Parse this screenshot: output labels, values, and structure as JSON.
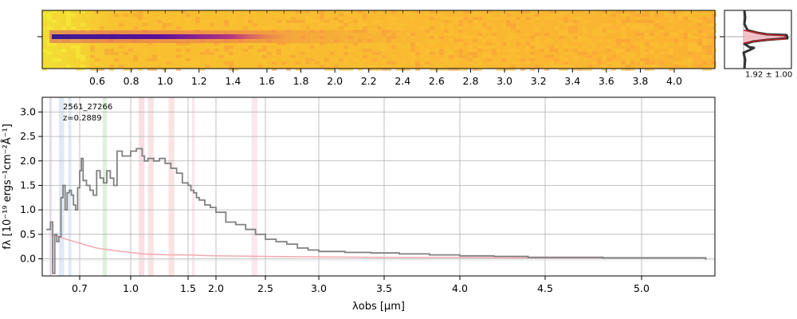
{
  "chart_data": [
    {
      "type": "heatmap",
      "panel": "2D spectrum",
      "colormap": "plasma",
      "top_axis_ticks": [
        "0.6",
        "0.8",
        "1.0",
        "1.2",
        "1.4",
        "1.6",
        "1.8",
        "2.0",
        "2.2",
        "2.4",
        "2.6",
        "2.8",
        "3.0",
        "3.2",
        "3.4",
        "3.6",
        "3.8",
        "4.0"
      ],
      "trace_wavelength_range": [
        0.45,
        1.9
      ]
    },
    {
      "type": "line",
      "panel": "spatial profile",
      "label": "1.92 ± 1.00",
      "colors": {
        "data": "#333333",
        "model": "#c0272d",
        "fill": "#f4b3bd"
      }
    },
    {
      "type": "line",
      "panel": "1D spectrum",
      "annotation": {
        "id": "2561_27266",
        "redshift": "z=0.2889"
      },
      "xlabel": "λobs [μm]",
      "ylabel": "fλ [10⁻¹⁹ ergs⁻¹cm⁻²Å⁻¹]",
      "x_scale": "nonlinear (prism)",
      "xlim": [
        0.52,
        5.4
      ],
      "ylim": [
        -0.35,
        3.3
      ],
      "x_ticks": [
        "0.7",
        "1.0",
        "1.5",
        "2.0",
        "2.5",
        "3.0",
        "3.5",
        "4.0",
        "4.5",
        "5.0"
      ],
      "y_ticks": [
        "0.0",
        "0.5",
        "1.0",
        "1.5",
        "2.0",
        "2.5",
        "3.0"
      ],
      "grid": true,
      "series": [
        {
          "color": "#808080",
          "x": [
            0.54,
            0.56,
            0.57,
            0.58,
            0.59,
            0.6,
            0.61,
            0.62,
            0.63,
            0.64,
            0.65,
            0.66,
            0.67,
            0.68,
            0.69,
            0.7,
            0.71,
            0.72,
            0.74,
            0.76,
            0.78,
            0.8,
            0.82,
            0.84,
            0.86,
            0.88,
            0.9,
            0.92,
            0.95,
            1.0,
            1.05,
            1.1,
            1.12,
            1.15,
            1.2,
            1.25,
            1.3,
            1.35,
            1.4,
            1.45,
            1.5,
            1.55,
            1.6,
            1.65,
            1.7,
            1.8,
            1.9,
            2.0,
            2.1,
            2.2,
            2.3,
            2.4,
            2.5,
            2.6,
            2.7,
            2.8,
            2.9,
            3.0,
            3.2,
            3.4,
            3.6,
            3.8,
            4.0,
            4.2,
            4.4,
            4.6,
            4.8,
            5.0,
            5.2,
            5.35
          ],
          "y": [
            0.6,
            0.75,
            -0.3,
            0.5,
            0.35,
            0.45,
            1.25,
            1.5,
            1.0,
            1.35,
            1.4,
            1.3,
            1.1,
            1.0,
            1.45,
            1.8,
            2.05,
            1.6,
            1.5,
            1.4,
            1.3,
            1.8,
            1.65,
            1.55,
            1.8,
            1.65,
            1.5,
            2.2,
            2.1,
            2.2,
            2.25,
            2.1,
            2.0,
            2.05,
            2.0,
            2.05,
            1.95,
            1.85,
            1.75,
            1.55,
            1.5,
            1.4,
            1.35,
            1.25,
            1.2,
            1.1,
            1.05,
            0.95,
            0.75,
            0.7,
            0.6,
            0.5,
            0.4,
            0.35,
            0.3,
            0.22,
            0.18,
            0.15,
            0.13,
            0.12,
            0.1,
            0.08,
            0.06,
            0.05,
            0.03,
            0.03,
            0.02,
            0.02,
            0.02,
            -0.02
          ]
        },
        {
          "color": "#f4a8ae",
          "x": [
            0.56,
            0.6,
            0.65,
            0.7,
            0.75,
            0.8,
            0.9,
            1.0,
            1.1,
            1.2,
            1.35,
            1.5,
            1.7,
            2.0,
            2.5,
            3.0,
            3.5,
            4.0,
            4.5,
            5.0,
            5.35
          ],
          "y": [
            0.5,
            0.45,
            0.38,
            0.32,
            0.27,
            0.22,
            0.17,
            0.13,
            0.1,
            0.09,
            0.08,
            0.08,
            0.07,
            0.06,
            0.05,
            0.04,
            0.03,
            0.03,
            0.02,
            0.02,
            0.02
          ]
        }
      ],
      "emission_bands": [
        {
          "x": [
            0.555,
            0.565
          ],
          "color": "#c9a7d9"
        },
        {
          "x": [
            0.6,
            0.625
          ],
          "color": "#b8d0e8"
        },
        {
          "x": [
            0.645,
            0.66
          ],
          "color": "#b8d0e8"
        },
        {
          "x": [
            0.835,
            0.86
          ],
          "color": "#b9e0b2"
        },
        {
          "x": [
            1.07,
            1.12
          ],
          "color": "#f2b8c6"
        },
        {
          "x": [
            1.15,
            1.2
          ],
          "color": "#f0c0c0"
        },
        {
          "x": [
            1.33,
            1.38
          ],
          "color": "#f3c0c0"
        },
        {
          "x": [
            1.57,
            1.62
          ],
          "color": "#f3c8d8"
        },
        {
          "x": [
            2.36,
            2.42
          ],
          "color": "#f3cdd8"
        }
      ]
    }
  ]
}
